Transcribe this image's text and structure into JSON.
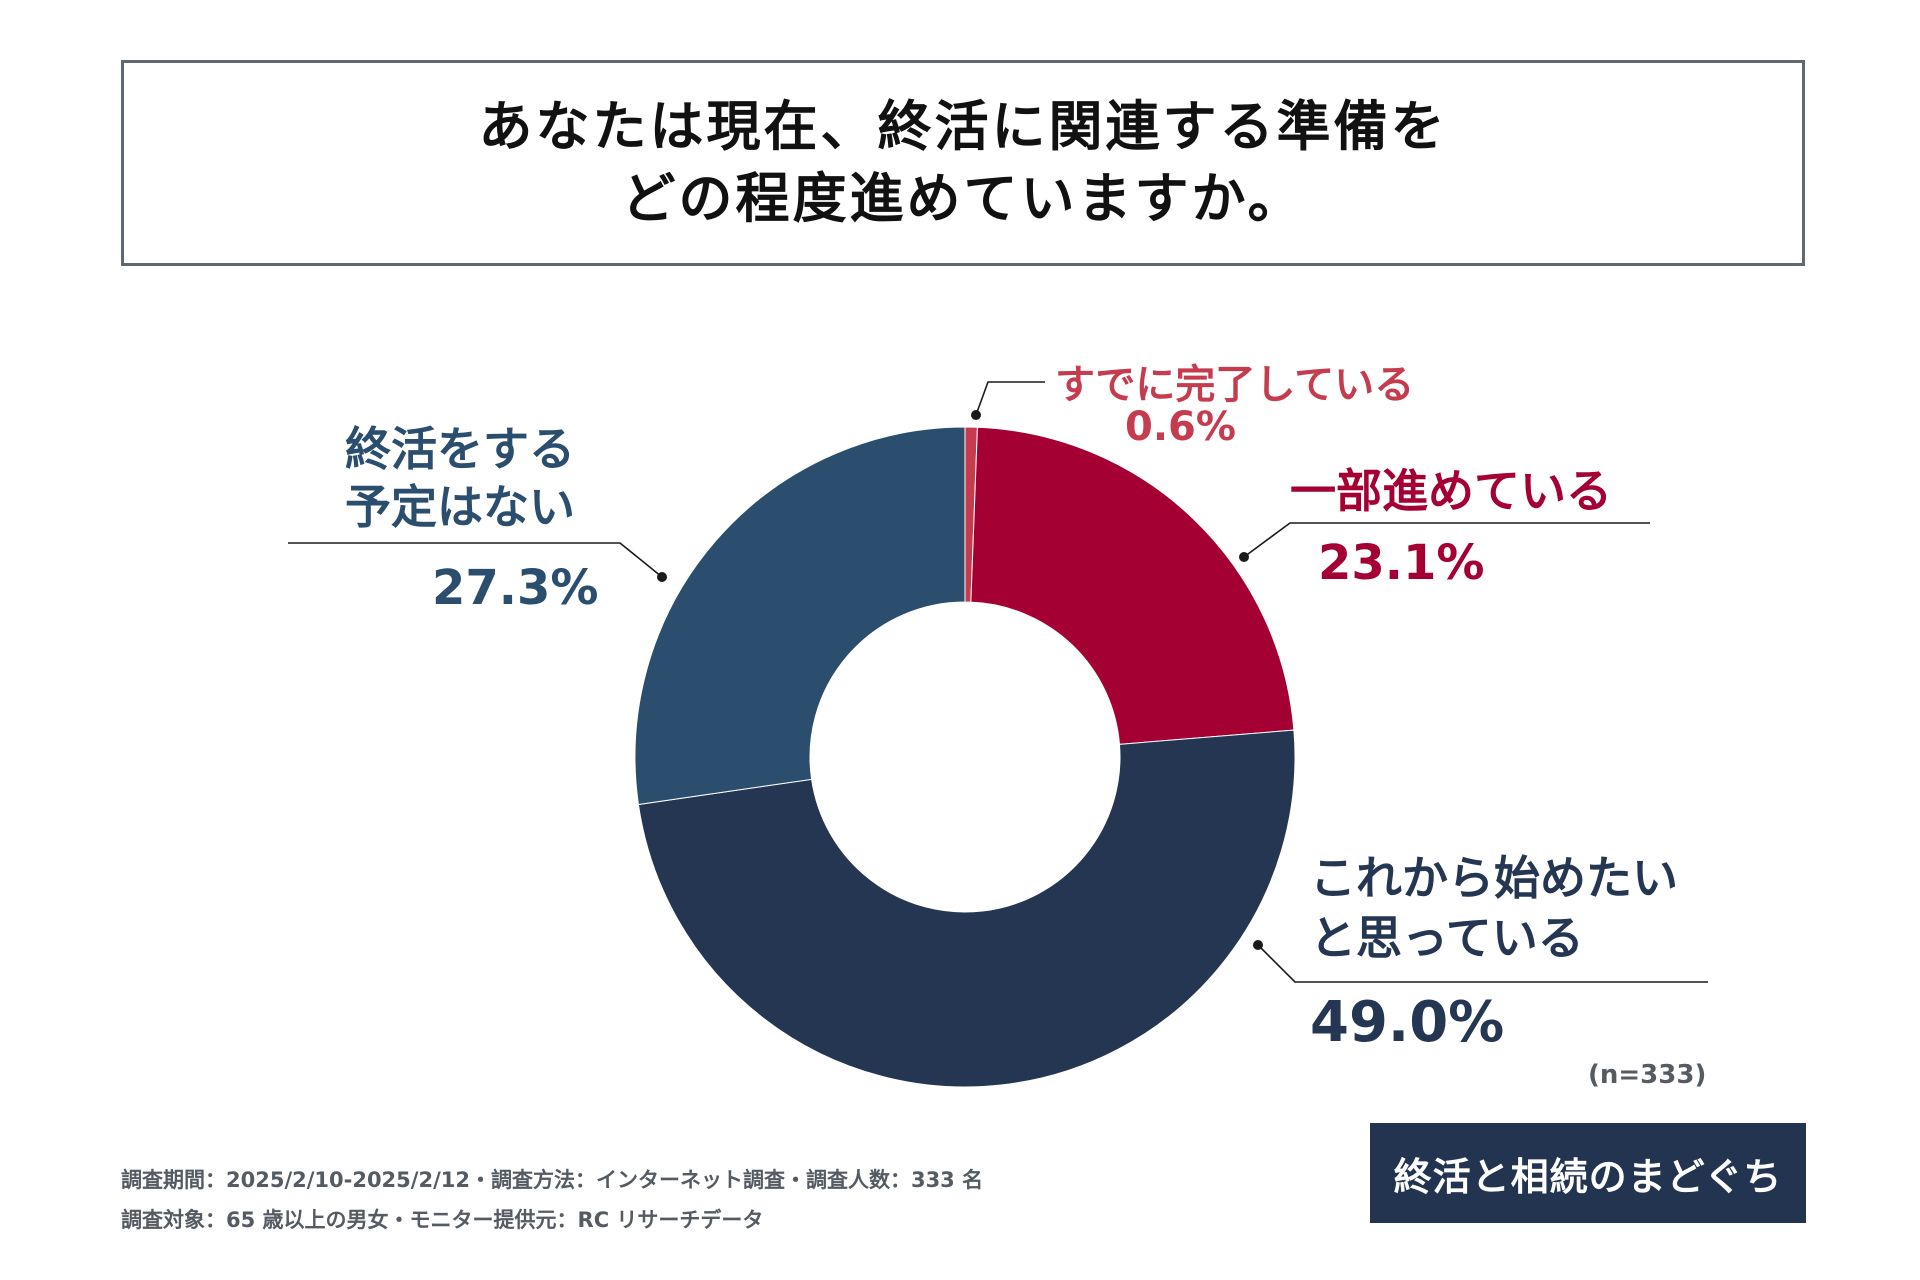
{
  "title": "あなたは現在、終活に関連する準備を\nどの程度進めていますか。",
  "chart_data": {
    "type": "pie",
    "variant": "donut",
    "title": "あなたは現在、終活に関連する準備を\nどの程度進めていますか。",
    "sample_size": "(n=333)",
    "slices": [
      {
        "label": "すでに完了している",
        "value": 0.6,
        "value_label": "0.6%",
        "color": "#c53c4e"
      },
      {
        "label": "一部進めている",
        "value": 23.1,
        "value_label": "23.1%",
        "color": "#a50034"
      },
      {
        "label": "これから始めたい\nと思っている",
        "value": 49.0,
        "value_label": "49.0%",
        "color": "#243651"
      },
      {
        "label": "終活をする\n予定はない",
        "value": 27.3,
        "value_label": "27.3%",
        "color": "#2b4d6e"
      }
    ]
  },
  "footer": {
    "line1": "調査期間：2025/2/10-2025/2/12・調査方法：インターネット調査・調査人数：333 名",
    "line2": "調査対象：65 歳以上の男女・モニター提供元：RC リサーチデータ"
  },
  "logo": {
    "text": "終活と相続のまどぐち"
  }
}
